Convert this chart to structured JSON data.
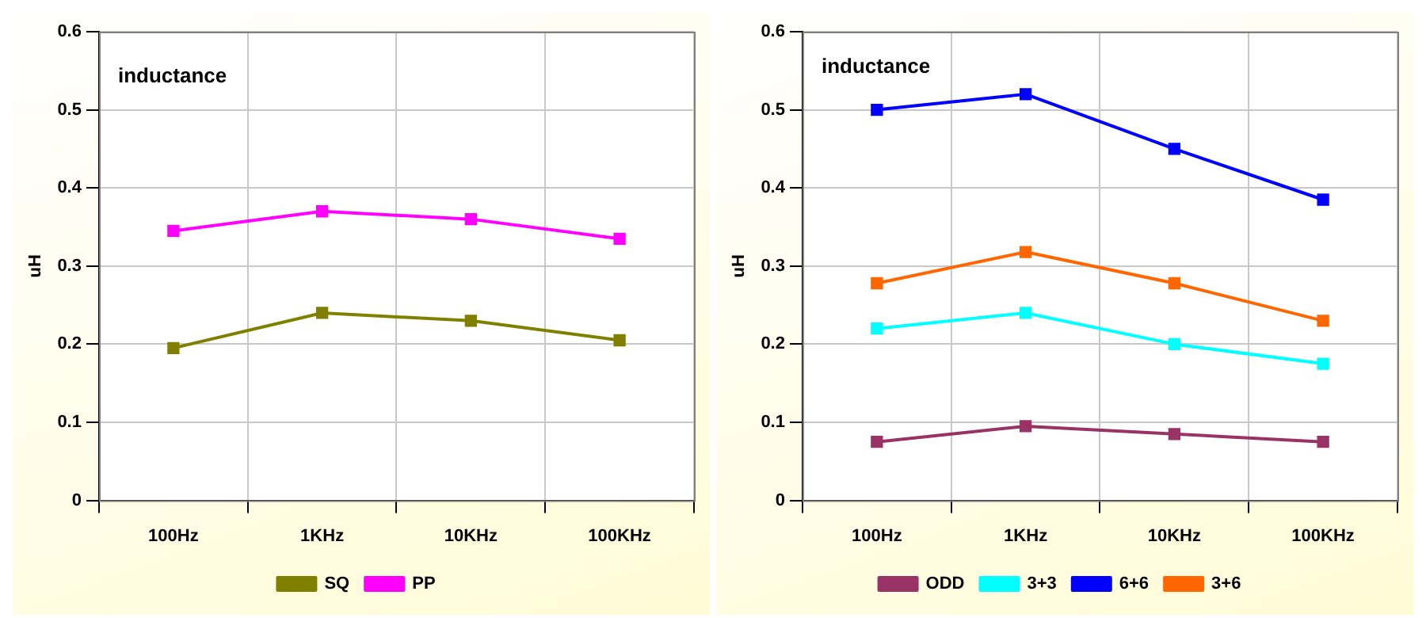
{
  "chart_data": [
    {
      "type": "line",
      "ylabel": "uH",
      "annotations": [
        "inductance"
      ],
      "categories": [
        "100Hz",
        "1KHz",
        "10KHz",
        "100KHz"
      ],
      "series": [
        {
          "name": "SQ",
          "color": "#808000",
          "values": [
            0.195,
            0.24,
            0.23,
            0.205
          ]
        },
        {
          "name": "PP",
          "color": "#ff00ff",
          "values": [
            0.345,
            0.37,
            0.36,
            0.335
          ]
        }
      ],
      "ylim": [
        0,
        0.6
      ],
      "yticks": [
        0,
        0.1,
        0.2,
        0.3,
        0.4,
        0.5,
        0.6
      ],
      "grid": true,
      "legend": "bottom",
      "marker": "square",
      "line_style": "solid"
    },
    {
      "type": "line",
      "ylabel": "uH",
      "annotations": [
        "inductance"
      ],
      "categories": [
        "100Hz",
        "1KHz",
        "10KHz",
        "100KHz"
      ],
      "series": [
        {
          "name": "ODD",
          "color": "#993366",
          "values": [
            0.075,
            0.095,
            0.085,
            0.075
          ]
        },
        {
          "name": "3+3",
          "color": "#00ffff",
          "values": [
            0.22,
            0.24,
            0.2,
            0.175
          ]
        },
        {
          "name": "6+6",
          "color": "#0000ff",
          "values": [
            0.5,
            0.52,
            0.45,
            0.385
          ]
        },
        {
          "name": "3+6",
          "color": "#ff6600",
          "values": [
            0.278,
            0.318,
            0.278,
            0.23
          ]
        }
      ],
      "ylim": [
        0,
        0.6
      ],
      "yticks": [
        0,
        0.1,
        0.2,
        0.3,
        0.4,
        0.5,
        0.6
      ],
      "grid": true,
      "legend": "bottom",
      "marker": "square",
      "line_style": "solid"
    }
  ]
}
